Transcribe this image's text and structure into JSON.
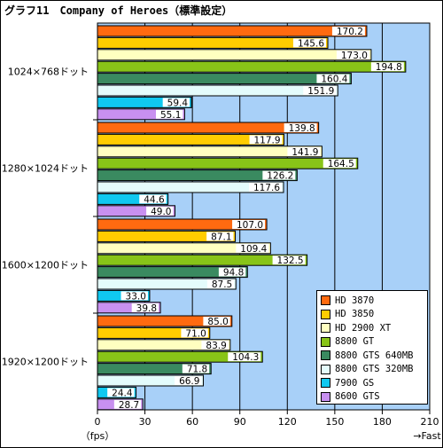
{
  "chart_data": {
    "type": "bar",
    "orientation": "horizontal",
    "title": "グラフ11　Company of Heroes（標準設定）",
    "categories": [
      "1024×768ドット",
      "1280×1024ドット",
      "1600×1200ドット",
      "1920×1200ドット"
    ],
    "xlabel": "（fps）",
    "xlabel_right": "→Fast",
    "xlim": [
      0,
      210
    ],
    "xticks": [
      "0",
      "30",
      "60",
      "90",
      "120",
      "150",
      "180",
      "210"
    ],
    "grid": true,
    "plot_background": "#a8d0f8",
    "legend_position": "bottom-right",
    "series": [
      {
        "name": "HD 3870",
        "color": "#ff6a10",
        "values": [
          170.2,
          139.8,
          107.0,
          85.0
        ],
        "labels": [
          "170.2",
          "139.8",
          "107.0",
          "85.0"
        ]
      },
      {
        "name": "HD 3850",
        "color": "#ffcc00",
        "values": [
          145.6,
          117.9,
          87.1,
          71.0
        ],
        "labels": [
          "145.6",
          "117.9",
          "87.1",
          "71.0"
        ]
      },
      {
        "name": "HD 2900 XT",
        "color": "#ffffc0",
        "values": [
          173.0,
          141.9,
          109.4,
          83.9
        ],
        "labels": [
          "173.0",
          "141.9",
          "109.4",
          "83.9"
        ]
      },
      {
        "name": "8800 GT",
        "color": "#88c418",
        "values": [
          194.8,
          164.5,
          132.5,
          104.3
        ],
        "labels": [
          "194.8",
          "164.5",
          "132.5",
          "104.3"
        ]
      },
      {
        "name": "8800 GTS 640MB",
        "color": "#3a8a60",
        "values": [
          160.4,
          126.2,
          94.8,
          71.8
        ],
        "labels": [
          "160.4",
          "126.2",
          "94.8",
          "71.8"
        ]
      },
      {
        "name": "8800 GTS 320MB",
        "color": "#e4fcfc",
        "values": [
          151.9,
          117.6,
          87.5,
          66.9
        ],
        "labels": [
          "151.9",
          "117.6",
          "87.5",
          "66.9"
        ]
      },
      {
        "name": "7900 GS",
        "color": "#10c8f0",
        "values": [
          59.4,
          44.6,
          33.0,
          24.4
        ],
        "labels": [
          "59.4",
          "44.6",
          "33.0",
          "24.4"
        ]
      },
      {
        "name": "8600 GTS",
        "color": "#c890f0",
        "values": [
          55.1,
          49.0,
          39.8,
          28.7
        ],
        "labels": [
          "55.1",
          "49.0",
          "39.8",
          "28.7"
        ]
      }
    ]
  }
}
